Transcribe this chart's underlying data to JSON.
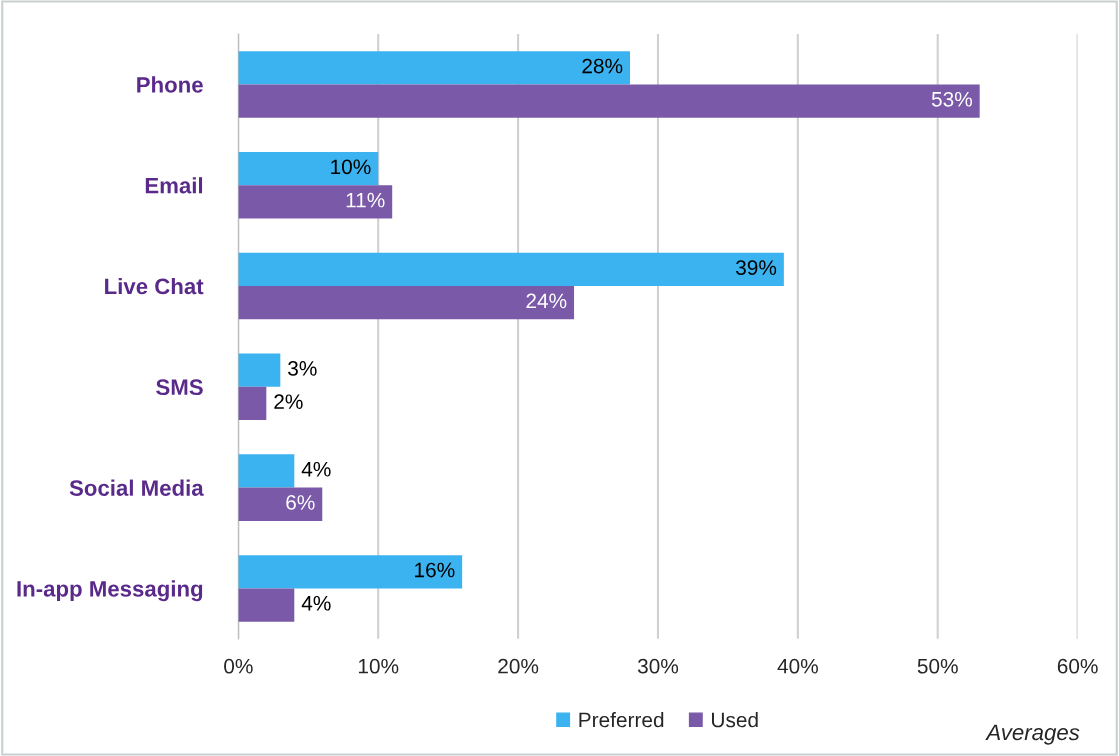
{
  "chart_data": {
    "type": "bar",
    "orientation": "horizontal",
    "categories": [
      "Phone",
      "Email",
      "Live Chat",
      "SMS",
      "Social Media",
      "In-app Messaging"
    ],
    "series": [
      {
        "name": "Preferred",
        "color": "#3bb3f0",
        "values": [
          28,
          10,
          39,
          3,
          4,
          16
        ],
        "value_labels": [
          "28%",
          "10%",
          "39%",
          "3%",
          "4%",
          "16%"
        ]
      },
      {
        "name": "Used",
        "color": "#7a5aa8",
        "values": [
          53,
          11,
          24,
          2,
          6,
          4
        ],
        "value_labels": [
          "53%",
          "11%",
          "24%",
          "2%",
          "6%",
          "4%"
        ]
      }
    ],
    "xlim": [
      0,
      60
    ],
    "xticks": [
      {
        "value": 0,
        "label": "0%"
      },
      {
        "value": 10,
        "label": "10%"
      },
      {
        "value": 20,
        "label": "20%"
      },
      {
        "value": 30,
        "label": "30%"
      },
      {
        "value": 40,
        "label": "40%"
      },
      {
        "value": 50,
        "label": "50%"
      },
      {
        "value": 60,
        "label": "60%"
      }
    ],
    "grid": "x",
    "legend": "bottom",
    "annotations": [
      "Averages"
    ]
  }
}
